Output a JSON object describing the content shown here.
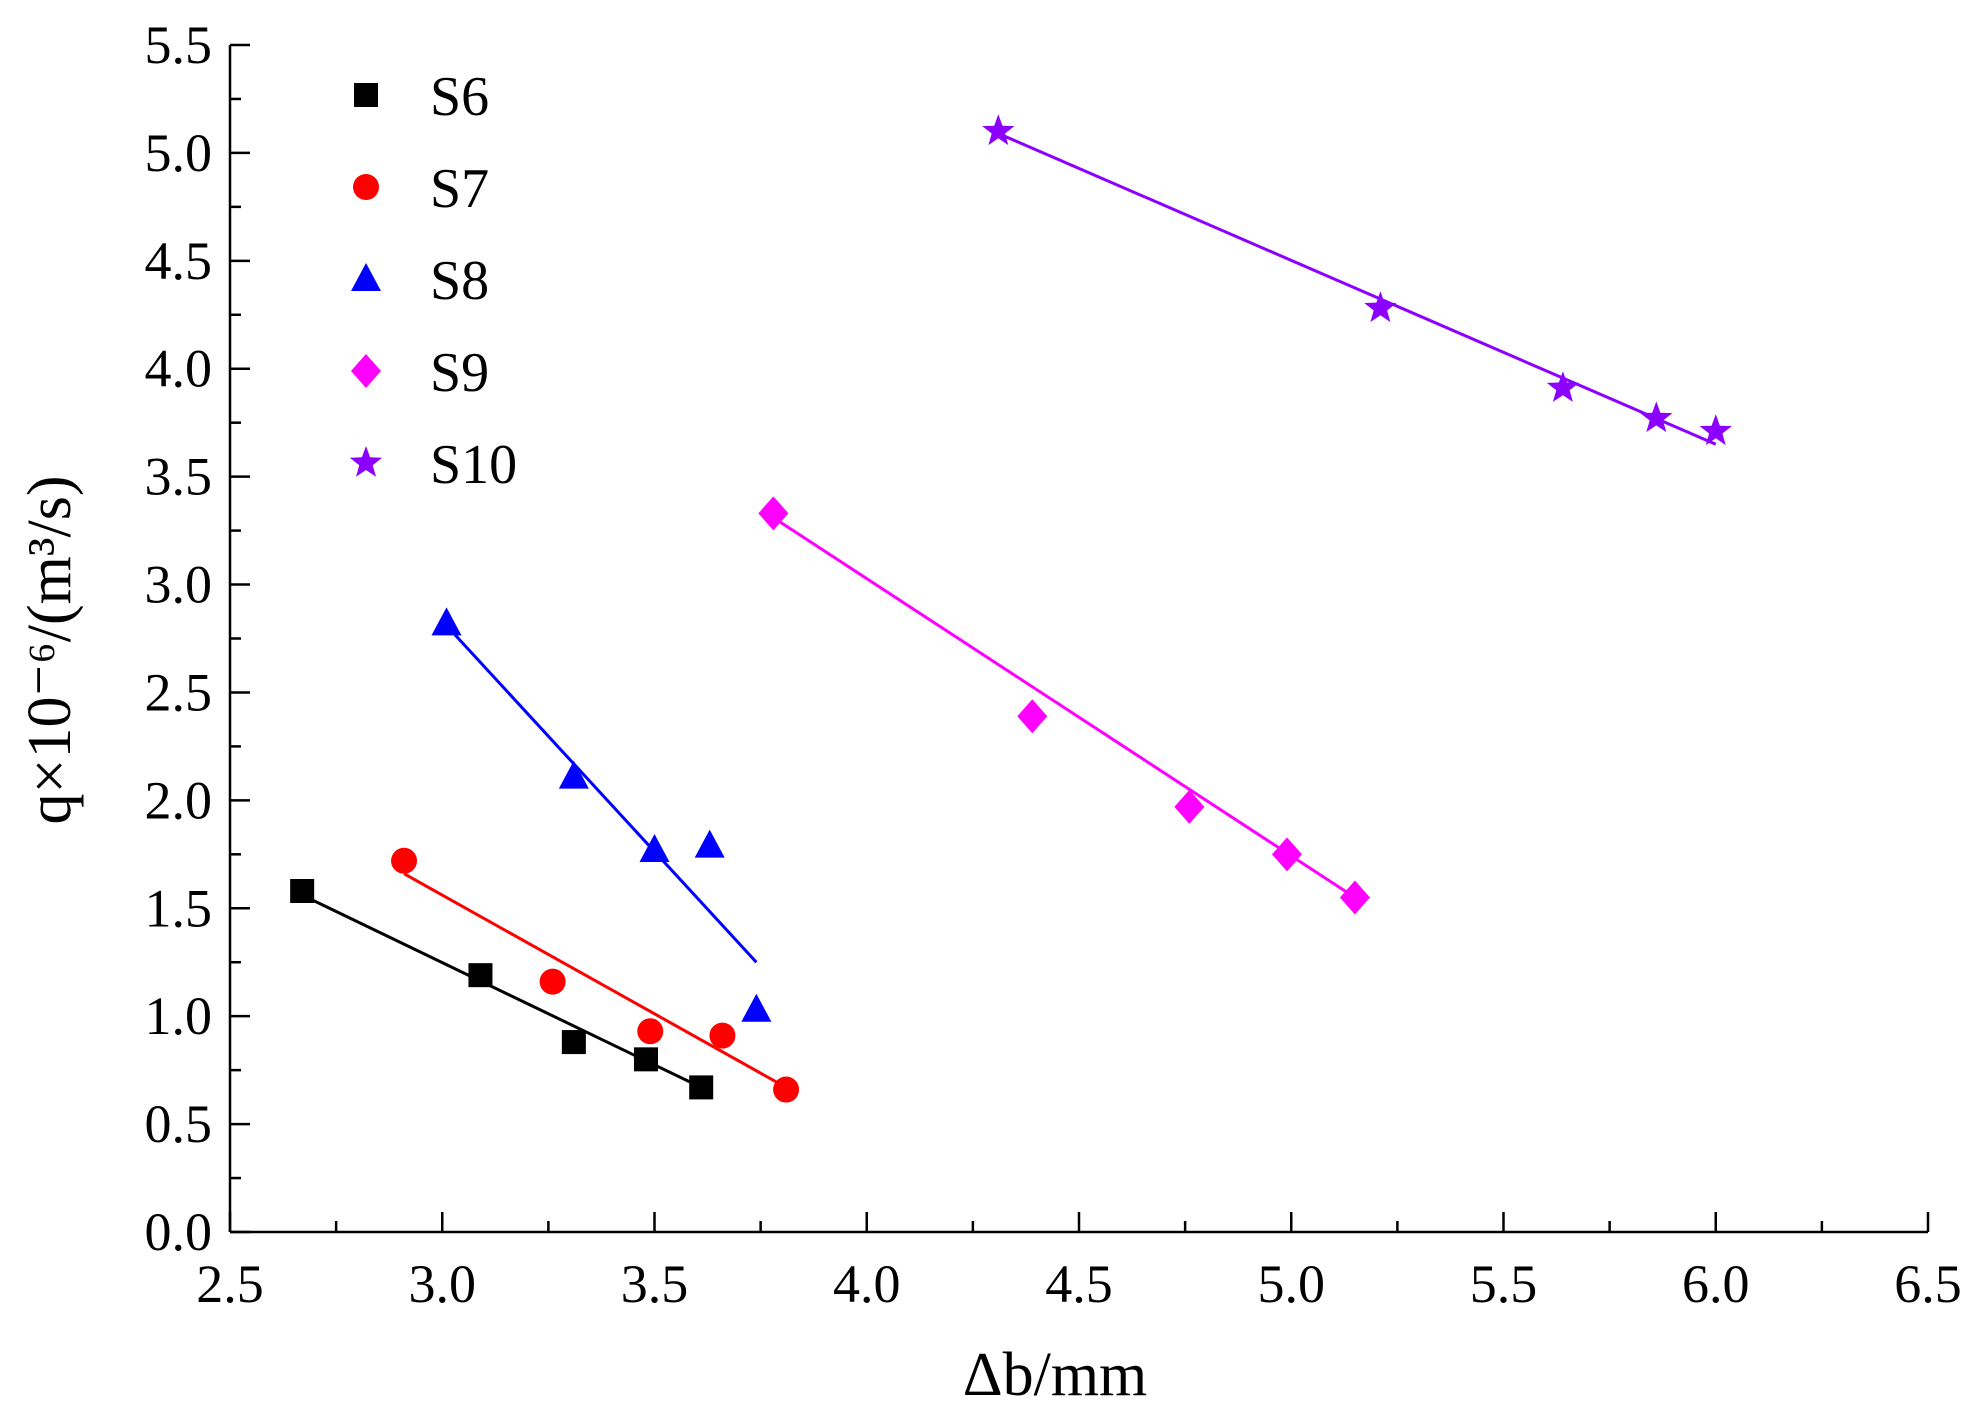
{
  "chart_data": {
    "type": "scatter",
    "xlabel": "Δb/mm",
    "ylabel": "q×10⁻⁶/(m³/s)",
    "xlim": [
      2.5,
      6.5
    ],
    "ylim": [
      0.0,
      5.5
    ],
    "xticks": [
      "2.5",
      "3.0",
      "3.5",
      "4.0",
      "4.5",
      "5.0",
      "5.5",
      "6.0",
      "6.5"
    ],
    "yticks": [
      "0.0",
      "0.5",
      "1.0",
      "1.5",
      "2.0",
      "2.5",
      "3.0",
      "3.5",
      "4.0",
      "4.5",
      "5.0",
      "5.5"
    ],
    "grid": false,
    "legend_position": "top-left",
    "series": [
      {
        "name": "S6",
        "color": "#000000",
        "marker": "square",
        "x": [
          2.67,
          3.09,
          3.31,
          3.48,
          3.61
        ],
        "y": [
          1.58,
          1.19,
          0.88,
          0.8,
          0.67
        ],
        "fit": [
          [
            2.65,
            1.58
          ],
          [
            3.61,
            0.67
          ]
        ]
      },
      {
        "name": "S7",
        "color": "#ff0000",
        "marker": "circle",
        "x": [
          2.91,
          3.26,
          3.49,
          3.66,
          3.81
        ],
        "y": [
          1.72,
          1.16,
          0.93,
          0.91,
          0.66
        ],
        "fit": [
          [
            2.91,
            1.66
          ],
          [
            3.81,
            0.67
          ]
        ]
      },
      {
        "name": "S8",
        "color": "#0000ff",
        "marker": "triangle",
        "x": [
          3.01,
          3.31,
          3.5,
          3.63,
          3.74
        ],
        "y": [
          2.82,
          2.11,
          1.77,
          1.79,
          1.03
        ],
        "fit": [
          [
            3.01,
            2.81
          ],
          [
            3.74,
            1.25
          ]
        ]
      },
      {
        "name": "S9",
        "color": "#ff00ff",
        "marker": "diamond",
        "x": [
          3.78,
          4.39,
          4.76,
          4.99,
          5.15
        ],
        "y": [
          3.33,
          2.39,
          1.97,
          1.75,
          1.55
        ],
        "fit": [
          [
            3.78,
            3.31
          ],
          [
            5.15,
            1.55
          ]
        ]
      },
      {
        "name": "S10",
        "color": "#8b00ff",
        "marker": "star",
        "x": [
          4.31,
          5.21,
          5.64,
          5.86,
          6.0
        ],
        "y": [
          5.1,
          4.28,
          3.91,
          3.77,
          3.71
        ],
        "fit": [
          [
            4.31,
            5.09
          ],
          [
            6.0,
            3.65
          ]
        ]
      }
    ]
  }
}
